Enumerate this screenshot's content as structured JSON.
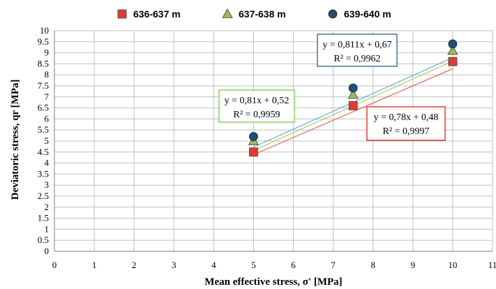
{
  "chart_data": {
    "type": "scatter",
    "xlabel": "Mean effective stress, σ' [MPa]",
    "ylabel": "Deviatoric stress, qr [MPa]",
    "xlim": [
      0,
      11
    ],
    "ylim": [
      0,
      10
    ],
    "x_ticks": [
      "0",
      "1",
      "2",
      "3",
      "4",
      "5",
      "6",
      "7",
      "8",
      "9",
      "10",
      "11"
    ],
    "y_ticks": [
      "0",
      "0.5",
      "1",
      "1.5",
      "2",
      "2.5",
      "3",
      "3.5",
      "4",
      "4.5",
      "5",
      "5.5",
      "6",
      "6.5",
      "7",
      "7.5",
      "8",
      "8.5",
      "9",
      "9.5",
      "10"
    ],
    "grid": true,
    "legend_position": "top",
    "series": [
      {
        "name": "636-637 m",
        "marker": "square",
        "color": "#e23b2f",
        "line_color": "#ff3b30",
        "x": [
          5,
          7.5,
          10
        ],
        "y": [
          4.5,
          6.6,
          8.6
        ],
        "trendline": {
          "slope": 0.78,
          "intercept": 0.48,
          "equation": "y = 0,78x + 0,48",
          "r2": "R² = 0,9997",
          "box_color": "#ff0000"
        }
      },
      {
        "name": "637-638 m",
        "marker": "triangle",
        "color": "#9bbb59",
        "line_color": "#92d050",
        "x": [
          5,
          7.5,
          10
        ],
        "y": [
          5.0,
          7.1,
          9.1
        ],
        "trendline": {
          "slope": 0.81,
          "intercept": 0.52,
          "equation": "y = 0,81x + 0,52",
          "r2": "R² = 0,9959",
          "box_color": "#66cc33"
        }
      },
      {
        "name": "639-640 m",
        "marker": "circle",
        "color": "#1f4e79",
        "line_color": "#5b9bd5",
        "x": [
          5,
          7.5,
          10
        ],
        "y": [
          5.2,
          7.4,
          9.4
        ],
        "trendline": {
          "slope": 0.811,
          "intercept": 0.67,
          "equation": "y = 0,811x + 0,67",
          "r2": "R² = 0,9962",
          "box_color": "#1f4e79"
        }
      }
    ]
  }
}
